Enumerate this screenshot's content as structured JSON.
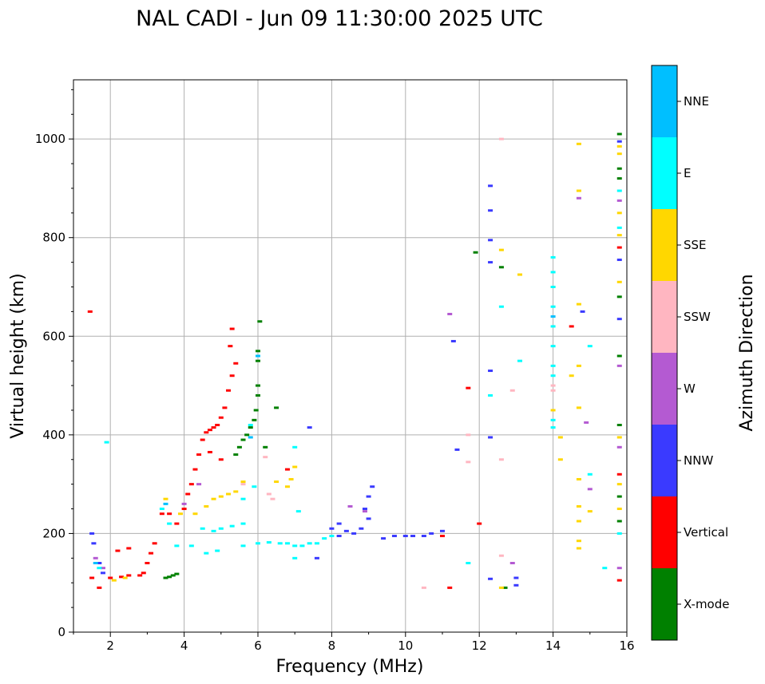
{
  "chart_data": {
    "type": "scatter",
    "title": "NAL CADI - Jun 09 11:30:00 2025 UTC",
    "xlabel": "Frequency (MHz)",
    "ylabel": "Virtual height (km)",
    "xlim": [
      1,
      16
    ],
    "ylim": [
      0,
      1120
    ],
    "x_ticks": [
      2,
      4,
      6,
      8,
      10,
      12,
      14,
      16
    ],
    "y_ticks": [
      0,
      200,
      400,
      600,
      800,
      1000
    ],
    "grid": true,
    "colorbar": {
      "title": "Azimuth Direction",
      "categories": [
        {
          "name": "X-mode",
          "color": "#008000"
        },
        {
          "name": "Vertical",
          "color": "#ff0000"
        },
        {
          "name": "NNW",
          "color": "#3a3aff"
        },
        {
          "name": "W",
          "color": "#b45ad2"
        },
        {
          "name": "SSW",
          "color": "#ffb6c1"
        },
        {
          "name": "SSE",
          "color": "#ffd700"
        },
        {
          "name": "E",
          "color": "#00ffff"
        },
        {
          "name": "NNE",
          "color": "#00bfff"
        }
      ]
    },
    "series": [
      {
        "name": "X-mode",
        "points": [
          [
            3.5,
            110
          ],
          [
            3.6,
            112
          ],
          [
            3.7,
            115
          ],
          [
            3.8,
            118
          ],
          [
            5.4,
            360
          ],
          [
            5.5,
            375
          ],
          [
            5.6,
            390
          ],
          [
            5.7,
            400
          ],
          [
            5.8,
            415
          ],
          [
            5.9,
            430
          ],
          [
            5.95,
            450
          ],
          [
            6.0,
            480
          ],
          [
            6.0,
            500
          ],
          [
            6.0,
            550
          ],
          [
            6.0,
            570
          ],
          [
            6.05,
            630
          ],
          [
            6.2,
            375
          ],
          [
            6.5,
            455
          ],
          [
            11.9,
            770
          ],
          [
            12.6,
            740
          ],
          [
            12.7,
            90
          ],
          [
            15.8,
            1010
          ],
          [
            15.8,
            940
          ],
          [
            15.8,
            920
          ],
          [
            15.8,
            680
          ],
          [
            15.8,
            560
          ],
          [
            15.8,
            420
          ],
          [
            15.8,
            225
          ],
          [
            15.8,
            275
          ]
        ]
      },
      {
        "name": "Vertical",
        "points": [
          [
            1.45,
            650
          ],
          [
            1.5,
            110
          ],
          [
            1.7,
            90
          ],
          [
            2.0,
            110
          ],
          [
            2.3,
            112
          ],
          [
            2.5,
            115
          ],
          [
            2.8,
            115
          ],
          [
            2.9,
            120
          ],
          [
            3.0,
            140
          ],
          [
            3.1,
            160
          ],
          [
            3.2,
            180
          ],
          [
            3.4,
            240
          ],
          [
            3.6,
            240
          ],
          [
            3.8,
            220
          ],
          [
            4.0,
            250
          ],
          [
            4.1,
            280
          ],
          [
            4.2,
            300
          ],
          [
            4.3,
            330
          ],
          [
            4.4,
            360
          ],
          [
            4.5,
            390
          ],
          [
            4.6,
            405
          ],
          [
            4.7,
            410
          ],
          [
            4.8,
            415
          ],
          [
            4.9,
            420
          ],
          [
            5.0,
            435
          ],
          [
            5.1,
            455
          ],
          [
            5.2,
            490
          ],
          [
            5.3,
            520
          ],
          [
            5.4,
            545
          ],
          [
            5.25,
            580
          ],
          [
            5.3,
            615
          ],
          [
            2.2,
            165
          ],
          [
            2.5,
            170
          ],
          [
            4.7,
            365
          ],
          [
            5.0,
            350
          ],
          [
            6.8,
            330
          ],
          [
            11.2,
            90
          ],
          [
            11.7,
            495
          ],
          [
            12.0,
            220
          ],
          [
            14.5,
            620
          ],
          [
            15.8,
            780
          ],
          [
            15.8,
            320
          ],
          [
            15.8,
            105
          ],
          [
            11.0,
            195
          ]
        ]
      },
      {
        "name": "NNW",
        "points": [
          [
            1.5,
            200
          ],
          [
            1.55,
            180
          ],
          [
            1.7,
            140
          ],
          [
            1.8,
            120
          ],
          [
            8.0,
            210
          ],
          [
            8.2,
            220
          ],
          [
            8.4,
            205
          ],
          [
            8.6,
            200
          ],
          [
            8.8,
            210
          ],
          [
            9.0,
            230
          ],
          [
            8.9,
            250
          ],
          [
            9.0,
            275
          ],
          [
            9.1,
            295
          ],
          [
            9.4,
            190
          ],
          [
            9.7,
            195
          ],
          [
            10.0,
            195
          ],
          [
            10.2,
            195
          ],
          [
            10.5,
            195
          ],
          [
            10.7,
            200
          ],
          [
            11.0,
            205
          ],
          [
            11.3,
            590
          ],
          [
            11.4,
            370
          ],
          [
            12.3,
            905
          ],
          [
            12.3,
            855
          ],
          [
            12.3,
            795
          ],
          [
            12.3,
            750
          ],
          [
            12.3,
            530
          ],
          [
            12.3,
            395
          ],
          [
            12.3,
            108
          ],
          [
            13.0,
            110
          ],
          [
            13.0,
            95
          ],
          [
            14.8,
            650
          ],
          [
            15.8,
            995
          ],
          [
            15.8,
            755
          ],
          [
            15.8,
            635
          ],
          [
            7.4,
            415
          ],
          [
            7.6,
            150
          ],
          [
            8.2,
            195
          ]
        ]
      },
      {
        "name": "W",
        "points": [
          [
            1.6,
            150
          ],
          [
            1.8,
            130
          ],
          [
            4.0,
            260
          ],
          [
            4.4,
            300
          ],
          [
            8.5,
            255
          ],
          [
            8.9,
            245
          ],
          [
            12.9,
            140
          ],
          [
            14.7,
            880
          ],
          [
            14.9,
            425
          ],
          [
            15.0,
            290
          ],
          [
            15.8,
            875
          ],
          [
            15.8,
            540
          ],
          [
            15.8,
            375
          ],
          [
            15.8,
            130
          ],
          [
            11.2,
            645
          ]
        ]
      },
      {
        "name": "SSW",
        "points": [
          [
            5.6,
            300
          ],
          [
            6.2,
            355
          ],
          [
            6.3,
            280
          ],
          [
            6.4,
            270
          ],
          [
            11.7,
            400
          ],
          [
            11.7,
            345
          ],
          [
            12.6,
            1000
          ],
          [
            12.6,
            350
          ],
          [
            12.6,
            155
          ],
          [
            12.9,
            490
          ],
          [
            14.0,
            490
          ],
          [
            14.0,
            500
          ],
          [
            10.5,
            90
          ]
        ]
      },
      {
        "name": "SSE",
        "points": [
          [
            2.1,
            105
          ],
          [
            2.4,
            110
          ],
          [
            3.5,
            270
          ],
          [
            3.9,
            240
          ],
          [
            4.3,
            240
          ],
          [
            4.6,
            255
          ],
          [
            4.8,
            270
          ],
          [
            5.0,
            275
          ],
          [
            5.2,
            280
          ],
          [
            5.4,
            285
          ],
          [
            5.6,
            305
          ],
          [
            6.5,
            305
          ],
          [
            6.8,
            295
          ],
          [
            6.9,
            310
          ],
          [
            7.0,
            335
          ],
          [
            12.6,
            775
          ],
          [
            12.6,
            90
          ],
          [
            13.1,
            725
          ],
          [
            14.0,
            700
          ],
          [
            14.0,
            450
          ],
          [
            14.2,
            395
          ],
          [
            14.2,
            350
          ],
          [
            14.5,
            520
          ],
          [
            14.7,
            990
          ],
          [
            14.7,
            895
          ],
          [
            14.7,
            665
          ],
          [
            14.7,
            540
          ],
          [
            14.7,
            455
          ],
          [
            14.7,
            310
          ],
          [
            14.7,
            255
          ],
          [
            14.7,
            185
          ],
          [
            14.7,
            170
          ],
          [
            14.7,
            225
          ],
          [
            15.0,
            245
          ],
          [
            15.8,
            985
          ],
          [
            15.8,
            970
          ],
          [
            15.8,
            850
          ],
          [
            15.8,
            805
          ],
          [
            15.8,
            710
          ],
          [
            15.8,
            395
          ],
          [
            15.8,
            300
          ],
          [
            15.8,
            250
          ]
        ]
      },
      {
        "name": "E",
        "points": [
          [
            1.9,
            385
          ],
          [
            1.7,
            130
          ],
          [
            3.4,
            250
          ],
          [
            3.6,
            220
          ],
          [
            3.8,
            175
          ],
          [
            4.2,
            175
          ],
          [
            4.5,
            210
          ],
          [
            4.8,
            205
          ],
          [
            5.0,
            210
          ],
          [
            5.3,
            215
          ],
          [
            5.6,
            220
          ],
          [
            4.6,
            160
          ],
          [
            4.9,
            165
          ],
          [
            5.6,
            270
          ],
          [
            5.9,
            295
          ],
          [
            5.6,
            175
          ],
          [
            6.0,
            180
          ],
          [
            6.3,
            182
          ],
          [
            6.6,
            180
          ],
          [
            6.8,
            180
          ],
          [
            7.0,
            175
          ],
          [
            7.2,
            175
          ],
          [
            7.4,
            180
          ],
          [
            7.6,
            180
          ],
          [
            7.8,
            190
          ],
          [
            8.0,
            195
          ],
          [
            7.0,
            150
          ],
          [
            7.1,
            245
          ],
          [
            7.0,
            375
          ],
          [
            5.8,
            420
          ],
          [
            12.6,
            660
          ],
          [
            13.1,
            550
          ],
          [
            12.3,
            480
          ],
          [
            14.0,
            760
          ],
          [
            14.0,
            730
          ],
          [
            14.0,
            700
          ],
          [
            14.0,
            660
          ],
          [
            14.0,
            620
          ],
          [
            14.0,
            580
          ],
          [
            14.0,
            540
          ],
          [
            14.0,
            520
          ],
          [
            14.0,
            430
          ],
          [
            14.0,
            415
          ],
          [
            15.0,
            580
          ],
          [
            15.0,
            320
          ],
          [
            15.4,
            130
          ],
          [
            15.8,
            895
          ],
          [
            15.8,
            820
          ],
          [
            15.8,
            200
          ],
          [
            11.7,
            140
          ]
        ]
      },
      {
        "name": "NNE",
        "points": [
          [
            1.6,
            140
          ],
          [
            3.5,
            260
          ],
          [
            5.8,
            395
          ],
          [
            6.0,
            560
          ],
          [
            14.0,
            640
          ]
        ]
      }
    ]
  }
}
